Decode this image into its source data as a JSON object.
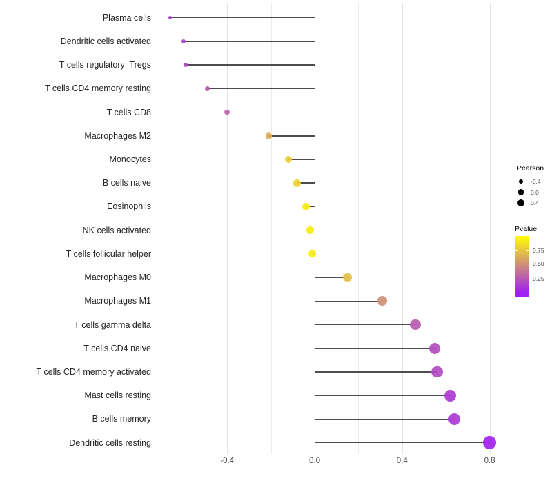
{
  "chart_data": {
    "type": "lollipop",
    "orientation": "horizontal",
    "title": "",
    "xlabel": "",
    "ylabel": "",
    "categories": [
      "Plasma cells",
      "Dendritic cells activated",
      "T cells regulatory  Tregs",
      "T cells CD4 memory resting",
      "T cells CD8",
      "Macrophages M2",
      "Monocytes",
      "B cells naive",
      "Eosinophils",
      "NK cells activated",
      "T cells follicular helper",
      "Macrophages M0",
      "Macrophages M1",
      "T cells gamma delta",
      "T cells CD4 naive",
      "T cells CD4 memory activated",
      "Mast cells resting",
      "B cells memory",
      "Dendritic cells resting"
    ],
    "series": [
      {
        "name": "Pearson",
        "values": [
          -0.66,
          -0.6,
          -0.59,
          -0.49,
          -0.4,
          -0.21,
          -0.12,
          -0.08,
          -0.04,
          -0.02,
          -0.01,
          0.15,
          0.31,
          0.46,
          0.55,
          0.56,
          0.62,
          0.64,
          0.8
        ]
      },
      {
        "name": "Pvalue",
        "values": [
          0.1,
          0.15,
          0.17,
          0.24,
          0.3,
          0.64,
          0.78,
          0.8,
          0.9,
          0.92,
          0.93,
          0.71,
          0.5,
          0.27,
          0.2,
          0.19,
          0.12,
          0.11,
          0.01
        ]
      }
    ],
    "x_ticks": [
      -0.4,
      0.0,
      0.4,
      0.8
    ],
    "x_tick_labels": [
      "-0.4",
      "0.0",
      "0.4",
      "0.8"
    ],
    "x_minor_ticks": [
      -0.6,
      -0.2,
      0.2,
      0.6
    ],
    "xlim": [
      -0.7,
      0.89
    ],
    "grid": "vertical-only",
    "legend_position": "right"
  },
  "legend": {
    "size": {
      "title": "Pearson",
      "items": [
        {
          "label": "-0.4",
          "value": -0.4
        },
        {
          "label": "0.0",
          "value": 0.0
        },
        {
          "label": "0.4",
          "value": 0.4
        }
      ]
    },
    "color": {
      "title": "Pvalue",
      "labels": [
        "0.75",
        "0.50",
        "0.25"
      ],
      "values": [
        0.75,
        0.5,
        0.25
      ],
      "gradient_high": "#FFFF00",
      "gradient_low": "#A020F0"
    }
  },
  "colors": {
    "background": "#ffffff",
    "stem": "#4d4d4d",
    "grid_major": "#e4e4e4",
    "grid_minor": "#ececec",
    "axis_text": "#4d4d4d",
    "category_text": "#262626",
    "legend_dot": "#000000"
  }
}
